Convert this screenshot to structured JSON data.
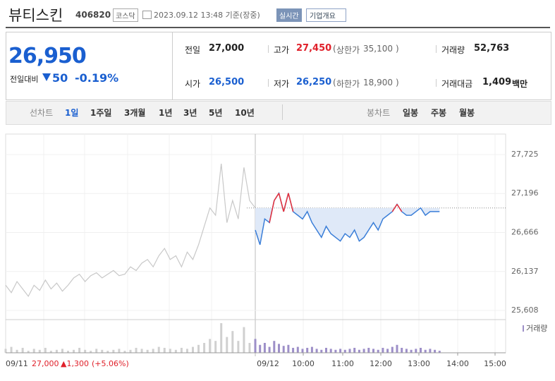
{
  "header": {
    "title": "뷰티스킨",
    "code": "406820",
    "market": "코스닥",
    "timestamp": "2023.09.12 13:48 기준(장중)",
    "realtime": "실시간",
    "company": "기업개요"
  },
  "summary": {
    "price": "26,950",
    "change_label": "전일대비",
    "change": "50",
    "change_pct": "-0.19%",
    "items": [
      {
        "label": "전일",
        "value": "27,000"
      },
      {
        "label": "고가",
        "value": "27,450",
        "sub_label": "상한가",
        "sub_value": "35,100"
      },
      {
        "label": "거래량",
        "value": "52,763"
      },
      {
        "label": "시가",
        "value": "26,500"
      },
      {
        "label": "저가",
        "value": "26,250",
        "sub_label": "하한가",
        "sub_value": "18,900"
      },
      {
        "label": "거래대금",
        "value": "1,409",
        "unit": "백만"
      }
    ]
  },
  "tabs": {
    "line_label": "선차트",
    "line": [
      "1일",
      "1주일",
      "3개월",
      "1년",
      "3년",
      "5년",
      "10년"
    ],
    "candle_label": "봉차트",
    "candle": [
      "일봉",
      "주봉",
      "월봉"
    ]
  },
  "chart_data": {
    "type": "line",
    "ylim": [
      25512,
      28003
    ],
    "yticks": [
      {
        "value": 27725,
        "label": "27,725"
      },
      {
        "value": 27196,
        "label": "27,196"
      },
      {
        "value": 26666,
        "label": "26,666"
      },
      {
        "value": 26137,
        "label": "26,137"
      },
      {
        "value": 25608,
        "label": "25,608"
      }
    ],
    "reference_line": 27000,
    "x_labels": [
      "09/11",
      "09/12",
      "10:00",
      "11:00",
      "12:00",
      "13:00",
      "14:00",
      "15:00"
    ],
    "series": [
      {
        "name": "09/11",
        "color": "#c8c8c8",
        "values": [
          25950,
          25850,
          26000,
          25900,
          25800,
          25950,
          25880,
          26020,
          25900,
          25980,
          25870,
          25950,
          26050,
          26100,
          26000,
          26080,
          26120,
          26050,
          26100,
          26150,
          26080,
          26100,
          26200,
          26150,
          26250,
          26300,
          26200,
          26350,
          26450,
          26300,
          26350,
          26200,
          26400,
          26300,
          26500,
          26750,
          27000,
          26900,
          27600,
          26800,
          27100,
          26850,
          27550,
          27100,
          27000
        ]
      },
      {
        "name": "09/12",
        "color": "#3a7ed8",
        "up_color": "#e8303a",
        "values": [
          26700,
          26500,
          26850,
          26800,
          27100,
          27200,
          26950,
          27200,
          26950,
          26900,
          26850,
          26950,
          26800,
          26700,
          26600,
          26750,
          26650,
          26600,
          26550,
          26650,
          26600,
          26700,
          26550,
          26600,
          26700,
          26800,
          26700,
          26850,
          26900,
          26950,
          27050,
          26950,
          26900,
          26900,
          26950,
          27000,
          26900,
          26950,
          26950,
          26950
        ]
      }
    ],
    "volume_label": "거래량",
    "volume": [
      {
        "color": "#d0d0d0",
        "values": [
          4,
          6,
          3,
          5,
          2,
          4,
          3,
          5,
          2,
          3,
          4,
          2,
          3,
          5,
          3,
          2,
          4,
          3,
          2,
          3,
          4,
          2,
          3,
          5,
          4,
          3,
          4,
          6,
          5,
          4,
          3,
          5,
          4,
          6,
          8,
          10,
          14,
          12,
          30,
          16,
          22,
          12,
          26,
          10,
          6
        ]
      },
      {
        "color": "#9d8fc8",
        "values": [
          14,
          8,
          10,
          6,
          12,
          9,
          7,
          8,
          5,
          6,
          4,
          5,
          6,
          4,
          3,
          5,
          4,
          3,
          4,
          3,
          4,
          5,
          3,
          4,
          5,
          4,
          3,
          5,
          4,
          6,
          8,
          5,
          4,
          3,
          4,
          5,
          3,
          4,
          3,
          2
        ]
      }
    ],
    "footer": {
      "date": "09/11",
      "close": "27,000",
      "change": "▲1,300",
      "change_pct": "(+5.06%)"
    }
  }
}
